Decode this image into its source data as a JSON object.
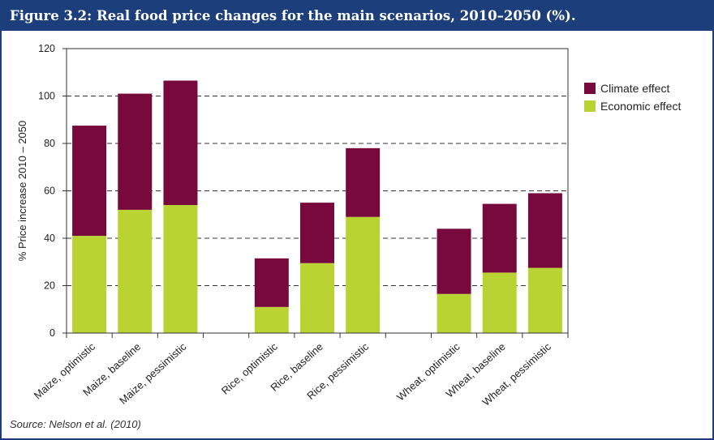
{
  "figure": {
    "title": "Figure 3.2: Real food price changes for the main scenarios, 2010–2050 (%).",
    "source": "Source: Nelson et al. (2010)"
  },
  "colors": {
    "frame": "#1c3f7c",
    "climate": "#77093d",
    "economic": "#b9d432",
    "gridline": "#333333"
  },
  "chart_data": {
    "type": "bar",
    "stacked": true,
    "categories": [
      "Maize, optimistic",
      "Maize, baseline",
      "Maize, pessimistic",
      "",
      "Rice, optimistic",
      "Rice, baseline",
      "Rice, pessimistic",
      "",
      "Wheat, optimistic",
      "Wheat, baseline",
      "Wheat, pessimistic"
    ],
    "series": [
      {
        "name": "Economic effect",
        "color": "#b9d432",
        "values": [
          41,
          52,
          54,
          null,
          11,
          29.5,
          49,
          null,
          16.5,
          25.5,
          27.5
        ]
      },
      {
        "name": "Climate effect",
        "color": "#77093d",
        "values": [
          46.5,
          49,
          52.5,
          null,
          20.5,
          25.5,
          29,
          null,
          27.5,
          29,
          31.5
        ]
      }
    ],
    "legend_order": [
      "Climate effect",
      "Economic effect"
    ],
    "ylabel": "% Price increase 2010 – 2050",
    "xlabel": "",
    "ylim": [
      0,
      120
    ],
    "yticks": [
      0,
      20,
      40,
      60,
      80,
      100,
      120
    ],
    "grid": "dashed horizontal",
    "legend_position": "right"
  }
}
